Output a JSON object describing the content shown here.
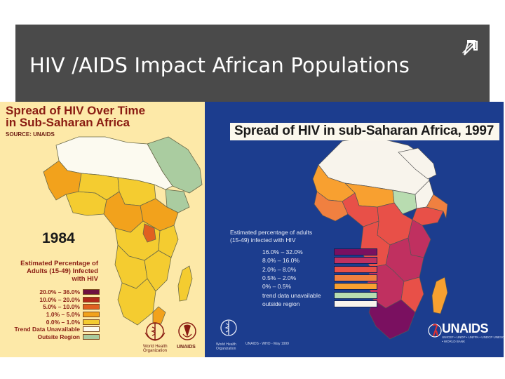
{
  "slide": {
    "title": "HIV /AIDS Impact African Populations",
    "corner_icon": "arrow-up-right-icon"
  },
  "left_map": {
    "title_line1": "Spread of HIV Over Time",
    "title_line2": "in Sub-Saharan Africa",
    "source": "SOURCE: UNAIDS",
    "year": "1984",
    "legend_title_1": "Estimated Percentage of",
    "legend_title_2": "Adults (15-49) Infected",
    "legend_title_3": "with HIV",
    "legend": [
      {
        "label": "20.0% – 36.0%",
        "color": "#6e1040"
      },
      {
        "label": "10.0% – 20.0%",
        "color": "#b0281a"
      },
      {
        "label": "5.0% – 10.0%",
        "color": "#e06020"
      },
      {
        "label": "1.0% – 5.0%",
        "color": "#f2a21c"
      },
      {
        "label": "0.0% – 1.0%",
        "color": "#f4cc30"
      },
      {
        "label": "Trend Data Unavailable",
        "color": "#fcfaf0"
      },
      {
        "label": "Outsite Region",
        "color": "#aacca0"
      }
    ],
    "logo1_label": "World Health Organization",
    "logo2_label": "UNAIDS"
  },
  "right_map": {
    "title": "Spread of HIV in sub-Saharan Africa, 1997",
    "legend_title_1": "Estimated percentage of adults",
    "legend_title_2": "(15-49) infected with HIV",
    "legend": [
      {
        "label": "16.0% – 32.0%",
        "color": "#7a1060"
      },
      {
        "label": "8.0% – 16.0%",
        "color": "#c03060"
      },
      {
        "label": "2.0% – 8.0%",
        "color": "#e85048"
      },
      {
        "label": "0.5% – 2.0%",
        "color": "#f08040"
      },
      {
        "label": "0%   –  0.5%",
        "color": "#f8a030"
      },
      {
        "label": "trend data unavailable",
        "color": "#b8dcb0"
      },
      {
        "label": "outside region",
        "color": "#f8f4ec"
      }
    ],
    "footer_org": "World Health Organization",
    "footer_date": "UNAIDS - WHO - May 1999",
    "unaids_label": "UNAIDS",
    "unaids_sub": "UNICEF • UNDP • UNFPA • UNDCP UNESCO • WHO • WORLD BANK"
  }
}
